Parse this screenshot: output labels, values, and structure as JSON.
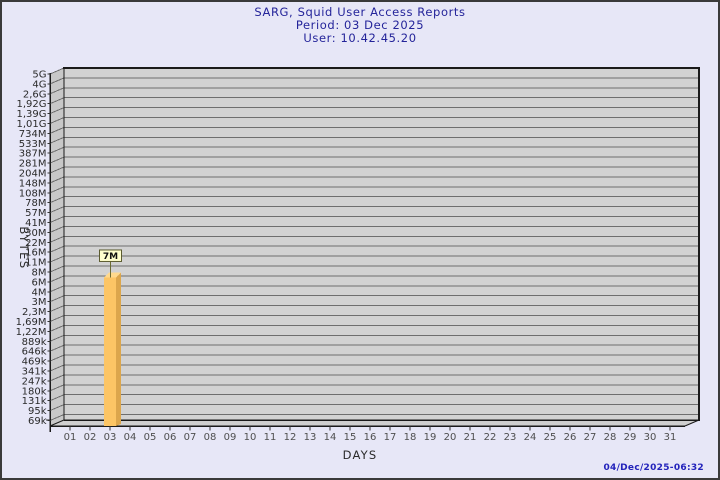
{
  "header": {
    "title": "SARG, Squid User Access Reports",
    "period": "Period: 03 Dec 2025",
    "user": "User: 10.42.45.20"
  },
  "footer": {
    "timestamp": "04/Dec/2025-06:32"
  },
  "colors": {
    "background": "#e7e7f7",
    "title_text": "#24249a",
    "timestamp_text": "#2323bb",
    "frame": "#1a1a1a",
    "wall": "#d2d2d2",
    "left_wall": "#c8c8c8",
    "floor": "#cfcfcf",
    "gridline": "#6e6e6e",
    "tick": "#333333",
    "y_label_text": "#2a2a2a",
    "x_label_text": "#4f4f4f",
    "axis_title_text": "#2a2a2a",
    "bar_face": "#fcc565",
    "bar_side": "#dca64c",
    "bar_top": "#ffd98d",
    "bar_label_bg": "#ffffce",
    "bar_label_border": "#5c5c30",
    "bar_label_text": "#111111",
    "bar_connector": "#6b6b33"
  },
  "chart_data": {
    "type": "bar",
    "title": "SARG, Squid User Access Reports",
    "subtitle": [
      "Period: 03 Dec 2025",
      "User: 10.42.45.20"
    ],
    "xlabel": "DAYS",
    "ylabel": "BYTES",
    "y_scale": "log",
    "y_range": {
      "min": 69000,
      "max": 5000000000
    },
    "y_tick_labels": [
      "5G",
      "4G",
      "2,6G",
      "1,92G",
      "1,39G",
      "1,01G",
      "734M",
      "533M",
      "387M",
      "281M",
      "204M",
      "148M",
      "108M",
      "78M",
      "57M",
      "41M",
      "30M",
      "22M",
      "16M",
      "11M",
      "8M",
      "6M",
      "4M",
      "3M",
      "2,3M",
      "1,69M",
      "1,22M",
      "889k",
      "646k",
      "469k",
      "341k",
      "247k",
      "180k",
      "131k",
      "95k",
      "69k"
    ],
    "categories": [
      "01",
      "02",
      "03",
      "04",
      "05",
      "06",
      "07",
      "08",
      "09",
      "10",
      "11",
      "12",
      "13",
      "14",
      "15",
      "16",
      "17",
      "18",
      "19",
      "20",
      "21",
      "22",
      "23",
      "24",
      "25",
      "26",
      "27",
      "28",
      "29",
      "30",
      "31"
    ],
    "bars": [
      {
        "category": "03",
        "value": 7000000,
        "label": "7M"
      }
    ],
    "grid": true,
    "legend": "none",
    "footer": "04/Dec/2025-06:32"
  }
}
